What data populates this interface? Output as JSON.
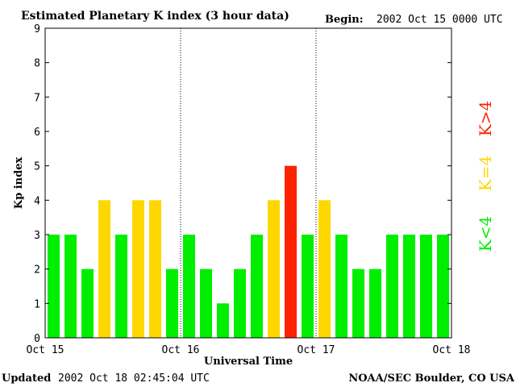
{
  "header": {
    "title": "Estimated Planetary K index (3 hour data)",
    "begin_label": "Begin:",
    "begin_value": "2002 Oct 15 0000 UTC"
  },
  "footer": {
    "updated_label": "Updated",
    "updated_value": "2002 Oct 18 02:45:04 UTC",
    "source": "NOAA/SEC Boulder, CO USA"
  },
  "legend": {
    "low": "K<4",
    "equal": "K=4",
    "high": "K>4"
  },
  "colors": {
    "low": "#00ee00",
    "equal": "#ffd700",
    "high": "#ff2200"
  },
  "chart_data": {
    "type": "bar",
    "title": "Estimated Planetary K index (3 hour data)",
    "xlabel": "Universal Time",
    "ylabel": "Kp index",
    "ylim": [
      0,
      9
    ],
    "yticks": [
      0,
      1,
      2,
      3,
      4,
      5,
      6,
      7,
      8,
      9
    ],
    "xtick_labels": [
      "Oct 15",
      "Oct 16",
      "Oct 17",
      "Oct 18"
    ],
    "day_separators": [
      "Oct 16",
      "Oct 17"
    ],
    "bars_per_day": 8,
    "values": [
      3,
      3,
      2,
      4,
      3,
      4,
      4,
      2,
      3,
      2,
      1,
      2,
      3,
      4,
      5,
      3,
      4,
      3,
      2,
      2,
      3,
      3,
      3,
      3
    ]
  }
}
